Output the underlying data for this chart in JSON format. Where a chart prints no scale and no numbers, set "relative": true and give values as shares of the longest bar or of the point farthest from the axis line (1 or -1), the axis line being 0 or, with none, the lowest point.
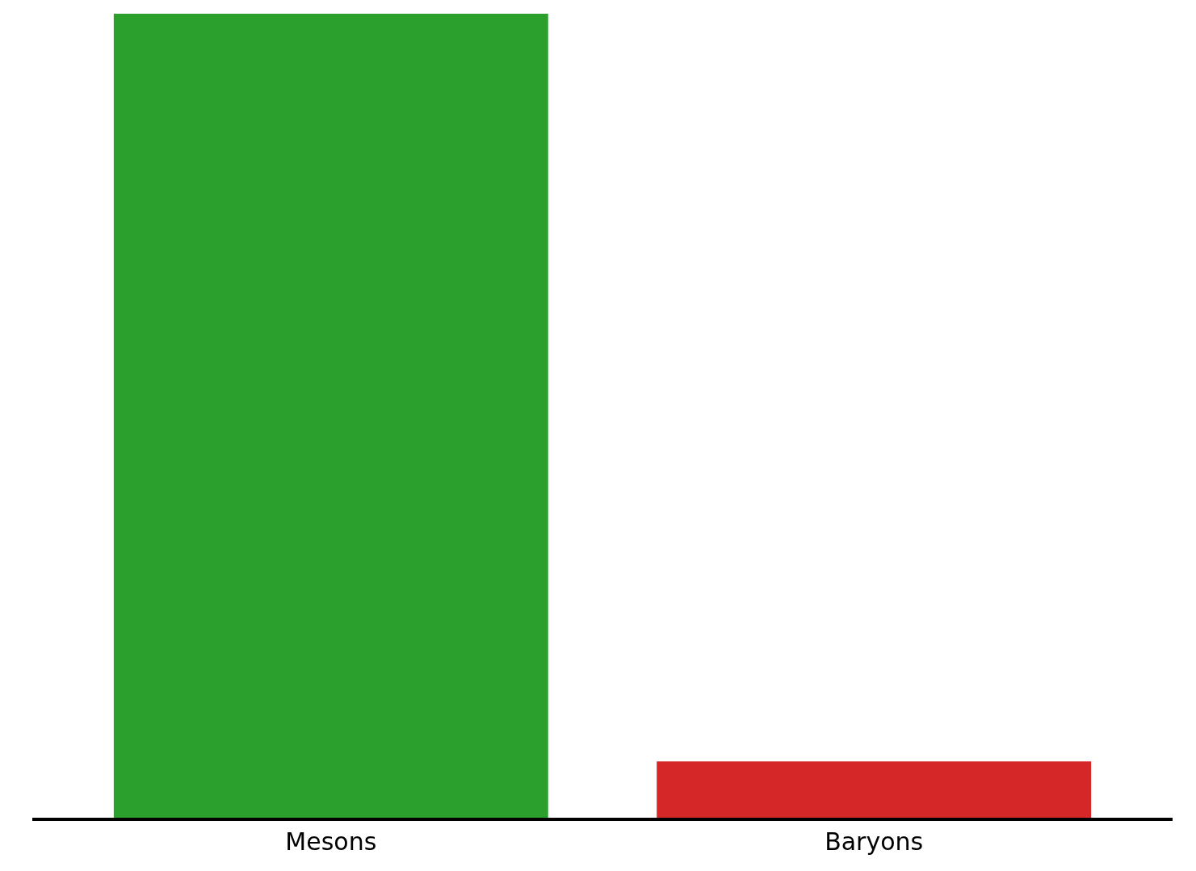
{
  "chart_data": {
    "type": "bar",
    "relative": true,
    "categories": [
      "Mesons",
      "Baryons"
    ],
    "values": [
      1,
      0.07
    ],
    "colors": [
      "#2ca02c",
      "#d62728"
    ]
  }
}
